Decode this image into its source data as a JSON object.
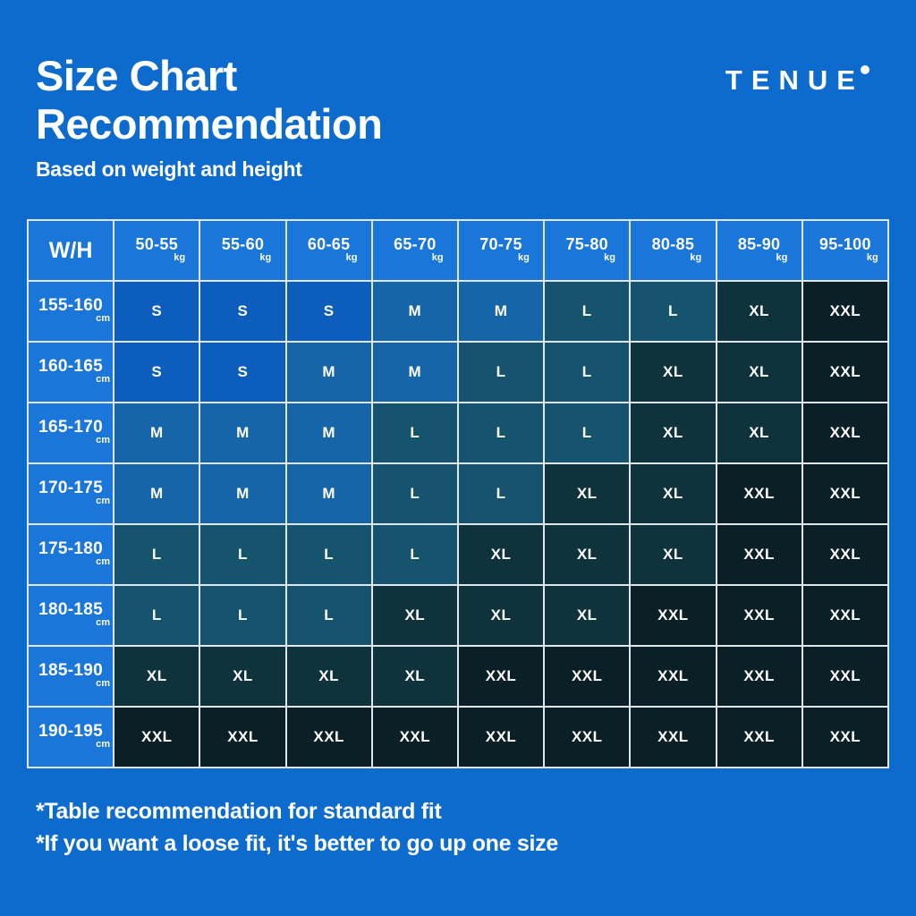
{
  "page": {
    "background_color": "#0d6bcd",
    "text_color": "#ffffff"
  },
  "header": {
    "title_line1": "Size Chart",
    "title_line2": "Recommendation",
    "subtitle": "Based on weight and height"
  },
  "brand": {
    "name": "TENUE"
  },
  "chart_data": {
    "type": "table",
    "title": "Size Chart Recommendation",
    "subtitle": "Based on weight and height",
    "corner_label": "W/H",
    "weight_unit": "kg",
    "height_unit": "cm",
    "columns_weight_kg": [
      "50-55",
      "55-60",
      "60-65",
      "65-70",
      "70-75",
      "75-80",
      "80-85",
      "85-90",
      "95-100"
    ],
    "rows_height_cm": [
      "155-160",
      "160-165",
      "165-170",
      "170-175",
      "175-180",
      "180-185",
      "185-190",
      "190-195"
    ],
    "cells": [
      [
        "S",
        "S",
        "S",
        "M",
        "M",
        "L",
        "L",
        "XL",
        "XXL"
      ],
      [
        "S",
        "S",
        "M",
        "M",
        "L",
        "L",
        "XL",
        "XL",
        "XXL"
      ],
      [
        "M",
        "M",
        "M",
        "L",
        "L",
        "L",
        "XL",
        "XL",
        "XXL"
      ],
      [
        "M",
        "M",
        "M",
        "L",
        "L",
        "XL",
        "XL",
        "XXL",
        "XXL"
      ],
      [
        "L",
        "L",
        "L",
        "L",
        "XL",
        "XL",
        "XL",
        "XXL",
        "XXL"
      ],
      [
        "L",
        "L",
        "L",
        "XL",
        "XL",
        "XL",
        "XXL",
        "XXL",
        "XXL"
      ],
      [
        "XL",
        "XL",
        "XL",
        "XL",
        "XXL",
        "XXL",
        "XXL",
        "XXL",
        "XXL"
      ],
      [
        "XXL",
        "XXL",
        "XXL",
        "XXL",
        "XXL",
        "XXL",
        "XXL",
        "XXL",
        "XXL"
      ]
    ],
    "size_colors": {
      "S": "#0d5dbd",
      "M": "#1565a8",
      "L": "#15536f",
      "XL": "#0e333d",
      "XXL": "#0b2026"
    },
    "header_cell_color": "#1b76da",
    "grid_line_color": "#e1e6eb"
  },
  "footnotes": {
    "line1": "*Table recommendation for standard fit",
    "line2": "*If you want a loose fit, it's better to go up one size"
  }
}
